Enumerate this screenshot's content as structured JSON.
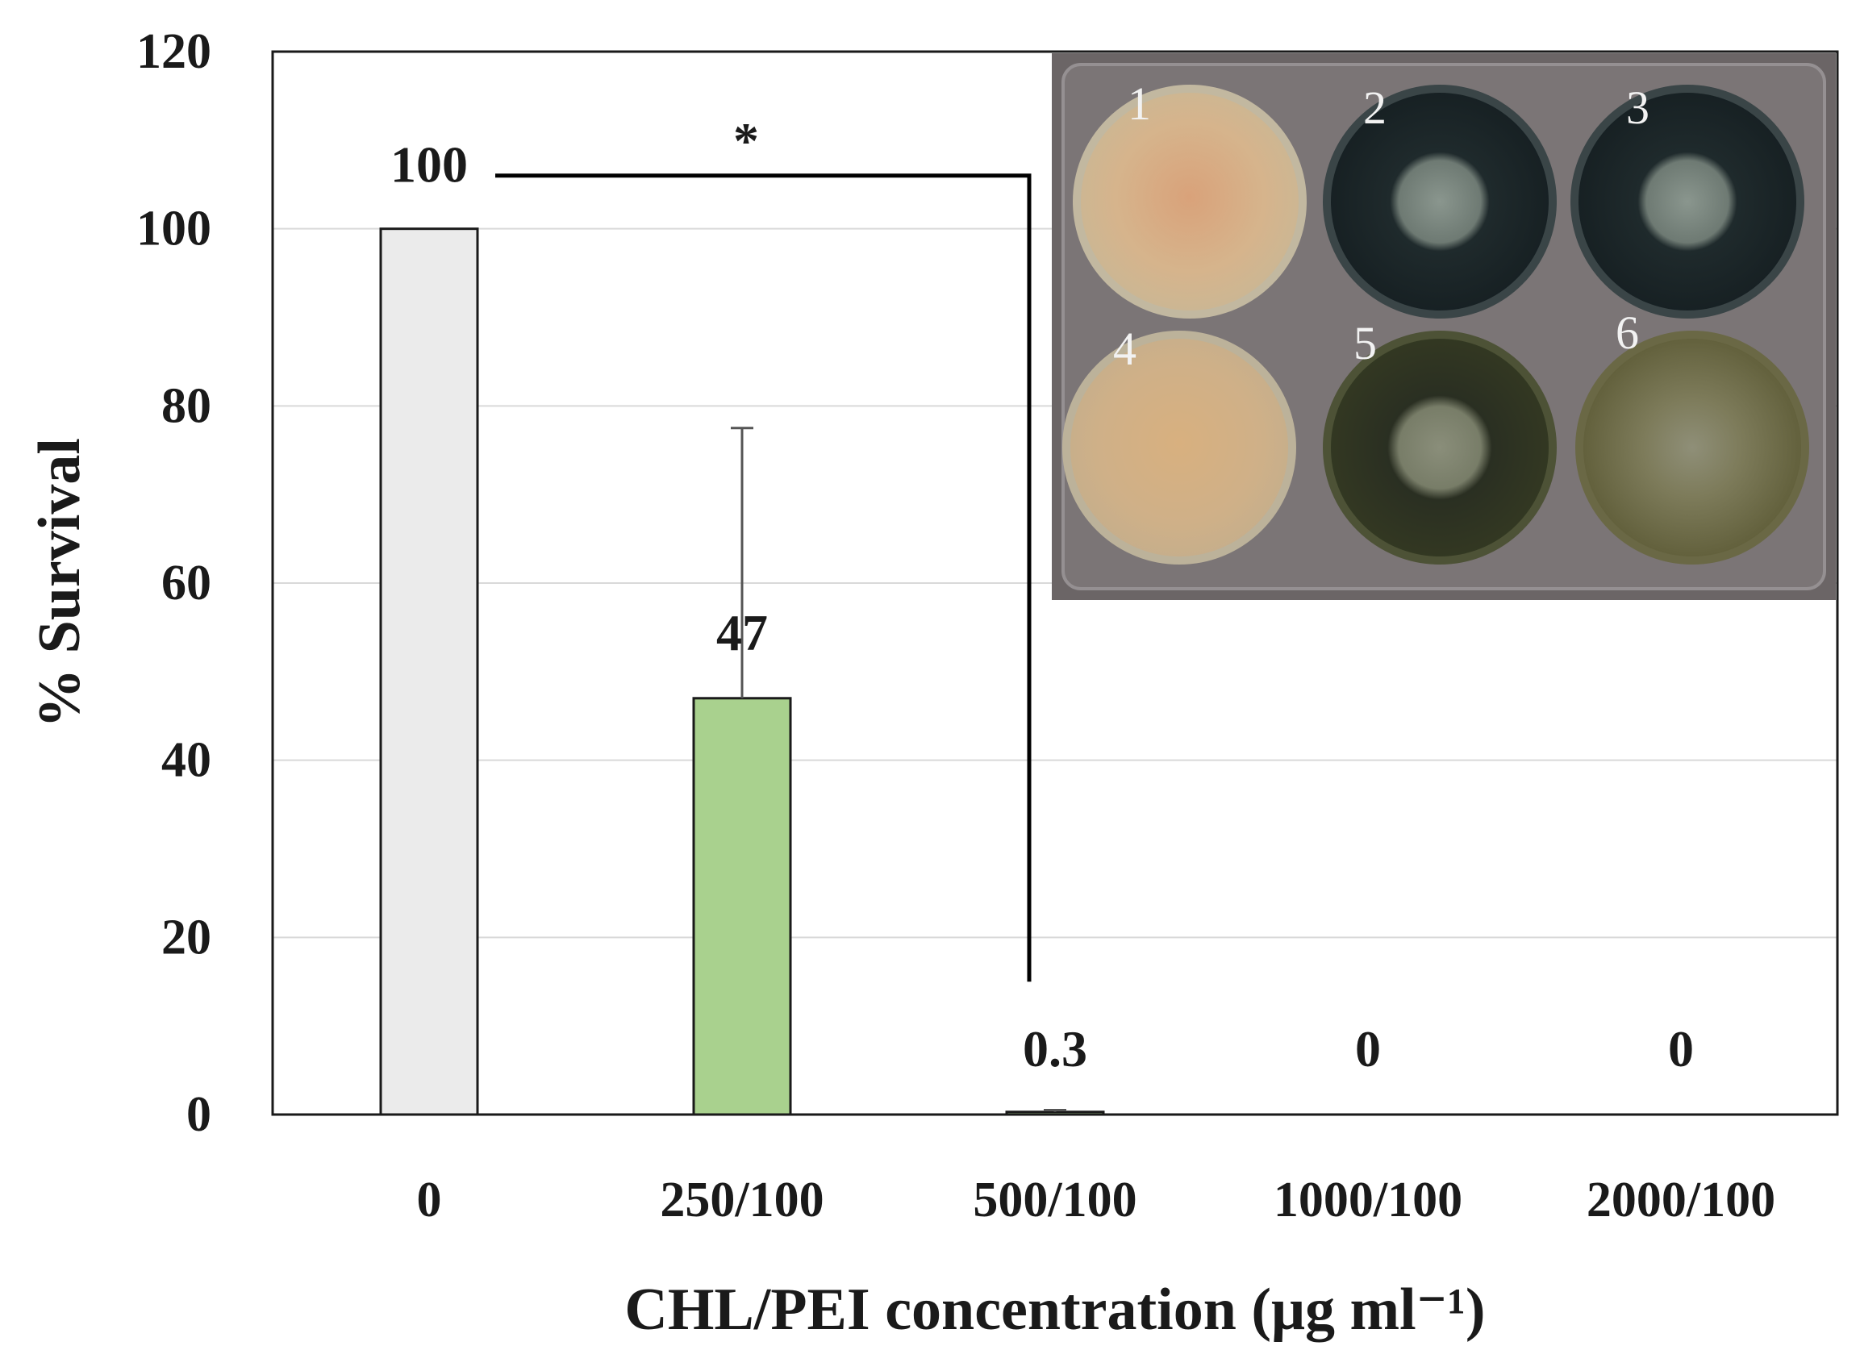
{
  "colors": {
    "grid": "#d9d9d9",
    "axis": "#1a1a1a",
    "bar_outline": "#1a1a1a",
    "bar_0": "#ebebeb",
    "bar_250": "#a9d18e",
    "bar_500": "#a9d18e",
    "significance_line": "#000000",
    "error_bar": "#555555"
  },
  "chart_data": {
    "type": "bar",
    "title": "",
    "xlabel": "CHL/PEI concentration (μg ml⁻¹)",
    "ylabel": "% Survival",
    "ylim": [
      0,
      120
    ],
    "yticks": [
      0,
      20,
      40,
      60,
      80,
      100,
      120
    ],
    "ytick_labels": [
      "0",
      "20",
      "40",
      "60",
      "80",
      "100",
      "120"
    ],
    "grid": true,
    "legend": "none",
    "categories": [
      "0",
      "250/100",
      "500/100",
      "1000/100",
      "2000/100"
    ],
    "values": [
      100,
      47,
      0.3,
      0,
      0
    ],
    "error_bars": [
      0,
      30.5,
      0.2,
      0,
      0
    ],
    "data_labels": [
      "100",
      "47",
      "0.3",
      "0",
      "0"
    ],
    "bar_colors": [
      "#ebebeb",
      "#a9d18e",
      "#a9d18e",
      "#a9d18e",
      "#a9d18e"
    ],
    "significance": {
      "marker": "*",
      "from_category": "0",
      "to_category": "500/100",
      "level": 106
    }
  },
  "inset": {
    "description_type": "photo",
    "well_numbers": [
      "1",
      "2",
      "3",
      "4",
      "5",
      "6"
    ]
  }
}
